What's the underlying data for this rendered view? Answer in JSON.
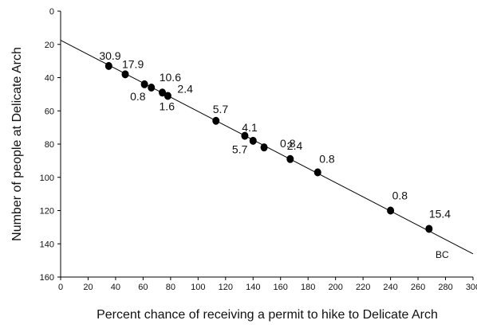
{
  "chart_data": {
    "type": "scatter",
    "title": "",
    "xlabel": "Percent chance of receiving a permit to hike to Delicate Arch",
    "ylabel": "Number of people at Delicate Arch",
    "xlim": [
      0,
      300
    ],
    "ylim": [
      0,
      160
    ],
    "y_inverted": true,
    "x_ticks": [
      "0",
      "20",
      "40",
      "60",
      "80",
      "100",
      "120",
      "140",
      "160",
      "180",
      "200",
      "220",
      "240",
      "260",
      "280",
      "300"
    ],
    "y_ticks": [
      "0",
      "20",
      "40",
      "60",
      "80",
      "100",
      "120",
      "140",
      "160"
    ],
    "grid": false,
    "legend": "none",
    "points": [
      {
        "x": 35,
        "y": 33,
        "label": "30.9"
      },
      {
        "x": 47,
        "y": 38,
        "label": "17.9"
      },
      {
        "x": 61,
        "y": 44,
        "label": "0.8"
      },
      {
        "x": 66,
        "y": 46,
        "label": "10.6"
      },
      {
        "x": 74,
        "y": 49,
        "label": "1.6"
      },
      {
        "x": 78,
        "y": 51,
        "label": "2.4"
      },
      {
        "x": 113,
        "y": 66,
        "label": "5.7"
      },
      {
        "x": 134,
        "y": 75,
        "label": "5.7"
      },
      {
        "x": 140,
        "y": 78,
        "label": "4.1"
      },
      {
        "x": 148,
        "y": 82,
        "label": "0.8"
      },
      {
        "x": 167,
        "y": 89,
        "label": "2.4"
      },
      {
        "x": 187,
        "y": 97,
        "label": "0.8"
      },
      {
        "x": 240,
        "y": 120,
        "label": "0.8"
      },
      {
        "x": 268,
        "y": 131,
        "label": "15.4"
      }
    ],
    "trendline": {
      "x": [
        0,
        300
      ],
      "y": [
        17.5,
        146
      ]
    },
    "annotation": "BC"
  }
}
